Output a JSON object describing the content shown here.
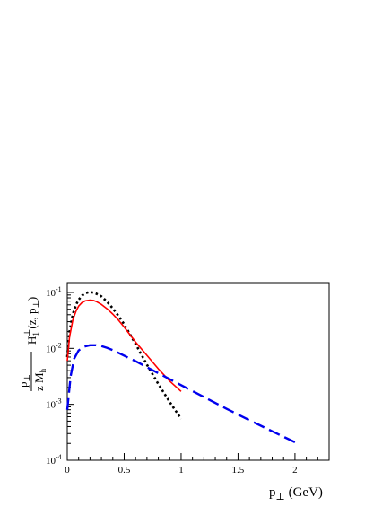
{
  "chart_data": {
    "type": "line",
    "ylabel": {
      "fraction_numerator": "p",
      "numerator_sub": "⊥",
      "fraction_denominator": "z M",
      "denominator_sub": "h",
      "function_main": "H",
      "function_sub": "1",
      "function_sup": "⊥",
      "function_args": "(z, p",
      "args_sub": "⊥",
      "args_close": ")"
    },
    "xlabel": {
      "main": "p",
      "sub": "⊥",
      "unit": " (GeV)"
    },
    "xlim": [
      0,
      2.3
    ],
    "ylim": [
      0.0001,
      0.15
    ],
    "log_y": true,
    "grid": false,
    "x_ticks": [
      {
        "value": 0,
        "label": "0"
      },
      {
        "value": 0.5,
        "label": "0.5"
      },
      {
        "value": 1,
        "label": "1"
      },
      {
        "value": 1.5,
        "label": "1.5"
      },
      {
        "value": 2,
        "label": "2"
      }
    ],
    "y_ticks": [
      {
        "value": 0.0001,
        "base": "10",
        "exp": "-4"
      },
      {
        "value": 0.001,
        "base": "10",
        "exp": "-3"
      },
      {
        "value": 0.01,
        "base": "10",
        "exp": "-2"
      },
      {
        "value": 0.1,
        "base": "10",
        "exp": "-1"
      }
    ],
    "series": [
      {
        "style": "dotted",
        "color": "#000000",
        "x": [
          0.0,
          0.02,
          0.05,
          0.08,
          0.1,
          0.13,
          0.16,
          0.19,
          0.22,
          0.25,
          0.3,
          0.35,
          0.4,
          0.45,
          0.5,
          0.6,
          0.7,
          0.8,
          0.9,
          1.0
        ],
        "y": [
          0.007,
          0.02,
          0.042,
          0.062,
          0.074,
          0.088,
          0.097,
          0.101,
          0.1,
          0.096,
          0.085,
          0.068,
          0.052,
          0.038,
          0.027,
          0.012,
          0.0051,
          0.0023,
          0.0011,
          0.00055
        ]
      },
      {
        "style": "solid",
        "color": "#ff0000",
        "x": [
          0.0,
          0.02,
          0.05,
          0.08,
          0.1,
          0.13,
          0.16,
          0.2,
          0.23,
          0.26,
          0.3,
          0.35,
          0.4,
          0.45,
          0.5,
          0.6,
          0.7,
          0.8,
          0.9,
          1.0
        ],
        "y": [
          0.006,
          0.016,
          0.033,
          0.048,
          0.057,
          0.066,
          0.071,
          0.073,
          0.072,
          0.068,
          0.061,
          0.051,
          0.041,
          0.032,
          0.024,
          0.013,
          0.0075,
          0.0043,
          0.0026,
          0.0017
        ]
      },
      {
        "style": "dashed",
        "color": "#0000ee",
        "x": [
          0.0,
          0.03,
          0.06,
          0.1,
          0.15,
          0.2,
          0.25,
          0.3,
          0.35,
          0.4,
          0.5,
          0.6,
          0.8,
          1.0,
          1.2,
          1.4,
          1.6,
          1.8,
          2.0
        ],
        "y": [
          0.0008,
          0.0032,
          0.0065,
          0.0092,
          0.0108,
          0.0114,
          0.0114,
          0.011,
          0.0102,
          0.0093,
          0.0074,
          0.0059,
          0.0036,
          0.0022,
          0.00135,
          0.00083,
          0.00052,
          0.00033,
          0.00021
        ]
      }
    ]
  }
}
